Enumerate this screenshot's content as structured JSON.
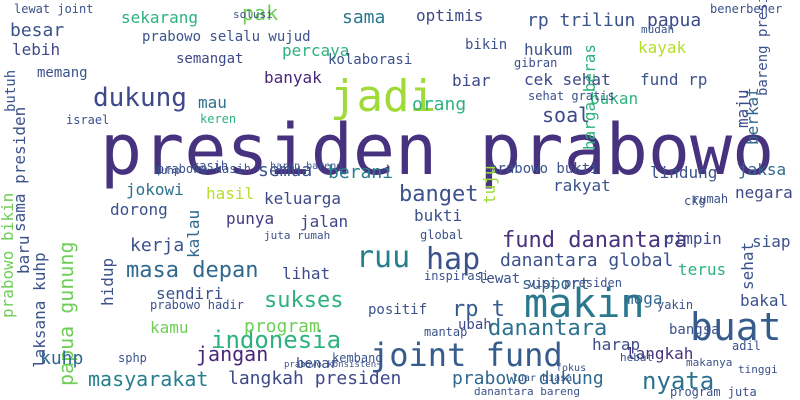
{
  "words": [
    {
      "text": "presiden prabowo",
      "color": "#46327e",
      "rotated": false
    },
    {
      "text": "makin",
      "color": "#2a788e",
      "rotated": false
    },
    {
      "text": "jadi",
      "color": "#a0da39",
      "rotated": false
    },
    {
      "text": "buat",
      "color": "#365c8d",
      "rotated": false
    },
    {
      "text": "joint fund",
      "color": "#365c8d",
      "rotated": false
    },
    {
      "text": "ruu",
      "color": "#277f8e",
      "rotated": false
    },
    {
      "text": "hap",
      "color": "#3b528b",
      "rotated": false
    },
    {
      "text": "dukung",
      "color": "#3e4989",
      "rotated": false
    },
    {
      "text": "indonesia",
      "color": "#2db27d",
      "rotated": false
    },
    {
      "text": "banget",
      "color": "#3b528b",
      "rotated": false
    },
    {
      "text": "papua gunung",
      "color": "#6ece58",
      "rotated": true
    },
    {
      "text": "danantara global",
      "color": "#3b528b",
      "rotated": false
    },
    {
      "text": "danantara",
      "color": "#2c728e",
      "rotated": false
    },
    {
      "text": "rp t",
      "color": "#365c8d",
      "rotated": false
    },
    {
      "text": "masa depan",
      "color": "#31688e",
      "rotated": false
    },
    {
      "text": "fund danantara",
      "color": "#46327e",
      "rotated": false
    },
    {
      "text": "masyarakat",
      "color": "#277f8e",
      "rotated": false
    },
    {
      "text": "langkah presiden",
      "color": "#3e4989",
      "rotated": false
    },
    {
      "text": "prabowo dukung",
      "color": "#31688e",
      "rotated": false
    },
    {
      "text": "nyata",
      "color": "#2c728e",
      "rotated": false
    },
    {
      "text": "jangan",
      "color": "#482878",
      "rotated": false
    },
    {
      "text": "kuhp",
      "color": "#31688e",
      "rotated": false
    },
    {
      "text": "sukses",
      "color": "#2db27d",
      "rotated": false
    },
    {
      "text": "program",
      "color": "#6ece58",
      "rotated": false
    },
    {
      "text": "sendiri",
      "color": "#3b528b",
      "rotated": false
    },
    {
      "text": "lihat",
      "color": "#3e4989",
      "rotated": false
    },
    {
      "text": "kerja",
      "color": "#3b528b",
      "rotated": false
    },
    {
      "text": "dorong",
      "color": "#3b528b",
      "rotated": false
    },
    {
      "text": "jokowi",
      "color": "#2c728e",
      "rotated": false
    },
    {
      "text": "hasil",
      "color": "#b5de2b",
      "rotated": false
    },
    {
      "text": "keluarga",
      "color": "#3e4989",
      "rotated": false
    },
    {
      "text": "jalan",
      "color": "#3e4989",
      "rotated": false
    },
    {
      "text": "punya",
      "color": "#443983",
      "rotated": false
    },
    {
      "text": "rakyat",
      "color": "#3b528b",
      "rotated": false
    },
    {
      "text": "lindung",
      "color": "#3b528b",
      "rotated": false
    },
    {
      "text": "jaksa",
      "color": "#31688e",
      "rotated": false
    },
    {
      "text": "pimpin",
      "color": "#3e4989",
      "rotated": false
    },
    {
      "text": "support",
      "color": "#31688e",
      "rotated": false
    },
    {
      "text": "terus",
      "color": "#2db27d",
      "rotated": false
    },
    {
      "text": "harap",
      "color": "#3e4989",
      "rotated": false
    },
    {
      "text": "langkah",
      "color": "#46327e",
      "rotated": false
    },
    {
      "text": "moga",
      "color": "#31688e",
      "rotated": false
    },
    {
      "text": "bakal",
      "color": "#3b528b",
      "rotated": false
    },
    {
      "text": "siap",
      "color": "#3b528b",
      "rotated": false
    },
    {
      "text": "negara",
      "color": "#3e4989",
      "rotated": false
    },
    {
      "text": "bukan",
      "color": "#2db27d",
      "rotated": false
    },
    {
      "text": "soal",
      "color": "#3e4989",
      "rotated": false
    },
    {
      "text": "orang",
      "color": "#2db27d",
      "rotated": false
    },
    {
      "text": "biar",
      "color": "#3e4989",
      "rotated": false
    },
    {
      "text": "cek sehat",
      "color": "#3e4989",
      "rotated": false
    },
    {
      "text": "fund rp",
      "color": "#3b528b",
      "rotated": false
    },
    {
      "text": "kayak",
      "color": "#b5de2b",
      "rotated": false
    },
    {
      "text": "hukum",
      "color": "#3b528b",
      "rotated": false
    },
    {
      "text": "bikin",
      "color": "#3b528b",
      "rotated": false
    },
    {
      "text": "rp triliun",
      "color": "#3b528b",
      "rotated": false
    },
    {
      "text": "papua",
      "color": "#3e4989",
      "rotated": false
    },
    {
      "text": "optimis",
      "color": "#3e4989",
      "rotated": false
    },
    {
      "text": "sama",
      "color": "#2a788e",
      "rotated": false
    },
    {
      "text": "pak",
      "color": "#6ece58",
      "rotated": false
    },
    {
      "text": "sekarang",
      "color": "#2db27d",
      "rotated": false
    },
    {
      "text": "besar",
      "color": "#3b528b",
      "rotated": false
    },
    {
      "text": "lebih",
      "color": "#3e4989",
      "rotated": false
    },
    {
      "text": "prabowo selalu wujud",
      "color": "#3b528b",
      "rotated": false
    },
    {
      "text": "percaya",
      "color": "#2db27d",
      "rotated": false
    },
    {
      "text": "semangat",
      "color": "#3e4989",
      "rotated": false
    },
    {
      "text": "memang",
      "color": "#3b528b",
      "rotated": false
    },
    {
      "text": "banyak",
      "color": "#482878",
      "rotated": false
    },
    {
      "text": "mau",
      "color": "#2c728e",
      "rotated": false
    },
    {
      "text": "kolaborasi",
      "color": "#3b528b",
      "rotated": false
    },
    {
      "text": "semua",
      "color": "#3b528b",
      "rotated": false
    },
    {
      "text": "berani",
      "color": "#277f8e",
      "rotated": false
    },
    {
      "text": "prabowo bukti",
      "color": "#3b528b",
      "rotated": false
    },
    {
      "text": "bukti",
      "color": "#3b528b",
      "rotated": false
    },
    {
      "text": "positif",
      "color": "#3b528b",
      "rotated": false
    },
    {
      "text": "lewat",
      "color": "#3b528b",
      "rotated": false
    },
    {
      "text": "ubah",
      "color": "#3e4989",
      "rotated": false
    },
    {
      "text": "kamu",
      "color": "#6ece58",
      "rotated": false
    },
    {
      "text": "benar",
      "color": "#3b528b",
      "rotated": false
    },
    {
      "text": "sama presiden",
      "color": "#3b528b",
      "rotated": true
    },
    {
      "text": "prabowo bikin",
      "color": "#6ece58",
      "rotated": true
    },
    {
      "text": "laksana kuhp",
      "color": "#3b528b",
      "rotated": true
    },
    {
      "text": "baru",
      "color": "#3b528b",
      "rotated": true
    },
    {
      "text": "hidup",
      "color": "#3b528b",
      "rotated": true
    },
    {
      "text": "kalau",
      "color": "#31688e",
      "rotated": true
    },
    {
      "text": "harga beras",
      "color": "#2db27d",
      "rotated": true
    },
    {
      "text": "berkat",
      "color": "#31688e",
      "rotated": true
    },
    {
      "text": "sehat",
      "color": "#3b528b",
      "rotated": true
    },
    {
      "text": "maju",
      "color": "#3e4989",
      "rotated": true
    },
    {
      "text": "tuju",
      "color": "#a0da39",
      "rotated": true
    },
    {
      "text": "bareng presiden",
      "color": "#3b528b",
      "rotated": true
    },
    {
      "text": "butuh",
      "color": "#3b528b",
      "rotated": true
    },
    {
      "text": "israel",
      "color": "#3b528b",
      "rotated": false
    },
    {
      "text": "keren",
      "color": "#2db27d",
      "rotated": false
    },
    {
      "text": "juta rumah",
      "color": "#3b528b",
      "rotated": false
    },
    {
      "text": "global",
      "color": "#3b528b",
      "rotated": false
    },
    {
      "text": "harap bareng",
      "color": "#3b528b",
      "rotated": false
    },
    {
      "text": "sehat gratis",
      "color": "#3b528b",
      "rotated": false
    },
    {
      "text": "gibran",
      "color": "#3b528b",
      "rotated": false
    },
    {
      "text": "ckg",
      "color": "#3b528b",
      "rotated": false
    },
    {
      "text": "visi presiden",
      "color": "#3b528b",
      "rotated": false
    },
    {
      "text": "kasih",
      "color": "#3b528b",
      "rotated": false
    },
    {
      "text": "solusi",
      "color": "#3b528b",
      "rotated": false
    },
    {
      "text": "bangsa",
      "color": "#3b528b",
      "rotated": false
    },
    {
      "text": "inspirasi",
      "color": "#3b528b",
      "rotated": false
    },
    {
      "text": "mantap",
      "color": "#3b528b",
      "rotated": false
    },
    {
      "text": "adil",
      "color": "#3b528b",
      "rotated": false
    },
    {
      "text": "prabowo hadir",
      "color": "#3b528b",
      "rotated": false
    },
    {
      "text": "sphp",
      "color": "#3b528b",
      "rotated": false
    },
    {
      "text": "kembang",
      "color": "#3b528b",
      "rotated": false
    },
    {
      "text": "prabowo kasih",
      "color": "#3b528b",
      "rotated": false
    },
    {
      "text": "yakin",
      "color": "#3b528b",
      "rotated": false
    },
    {
      "text": "rumah",
      "color": "#3b528b",
      "rotated": false
    },
    {
      "text": "kuhp",
      "color": "#3b528b",
      "rotated": false
    },
    {
      "text": "lewat joint",
      "color": "#3b528b",
      "rotated": false
    },
    {
      "text": "benerbener",
      "color": "#3b528b",
      "rotated": false
    },
    {
      "text": "mudah",
      "color": "#3b528b",
      "rotated": false
    },
    {
      "text": "hebat",
      "color": "#3b528b",
      "rotated": false
    },
    {
      "text": "makanya",
      "color": "#3b528b",
      "rotated": false
    },
    {
      "text": "program juta",
      "color": "#3b528b",
      "rotated": false
    },
    {
      "text": "tinggi",
      "color": "#3b528b",
      "rotated": false
    },
    {
      "text": "danantara bareng",
      "color": "#3b528b",
      "rotated": false
    },
    {
      "text": "prabowo konsisten",
      "color": "#3b528b",
      "rotated": false
    },
    {
      "text": "fokus",
      "color": "#3b528b",
      "rotated": false
    },
    {
      "text": "luar biasa",
      "color": "#3b528b",
      "rotated": false
    }
  ]
}
